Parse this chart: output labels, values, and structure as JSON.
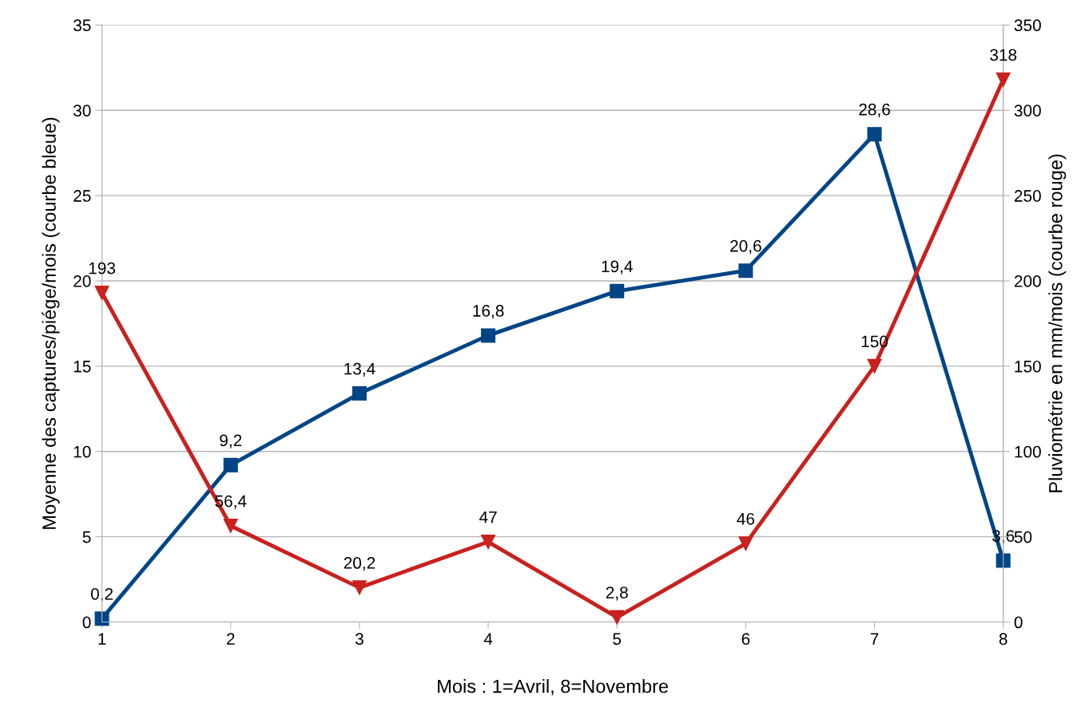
{
  "chart_data": {
    "type": "line",
    "xlabel": "Mois : 1=Avril, 8=Novembre",
    "ylabel": "Moyenne des captures/piége/mois (courbe bleue)",
    "y2label": "Pluviométrie en mm/mois (courbe rouge)",
    "x": [
      1,
      2,
      3,
      4,
      5,
      6,
      7,
      8
    ],
    "xlim": [
      1,
      8
    ],
    "xticks": [
      1,
      2,
      3,
      4,
      5,
      6,
      7,
      8
    ],
    "ylim": [
      0,
      35
    ],
    "yticks": [
      0,
      5,
      10,
      15,
      20,
      25,
      30,
      35
    ],
    "y2lim": [
      0,
      350
    ],
    "y2ticks": [
      0,
      50,
      100,
      150,
      200,
      250,
      300,
      350
    ],
    "grid": "y",
    "legend": false,
    "line_style": "solid",
    "series": [
      {
        "color": "#004586",
        "marker": "square",
        "values": [
          0.2,
          9.2,
          13.4,
          16.8,
          19.4,
          20.6,
          28.6,
          3.6
        ],
        "value_labels": [
          "0,2",
          "9,2",
          "13,4",
          "16,8",
          "19,4",
          "20,6",
          "28,6",
          "3,6"
        ]
      },
      {
        "color": "#c9211e",
        "marker": "triangle",
        "axis": "y2",
        "values": [
          193,
          56.4,
          20.2,
          47,
          2.8,
          46,
          150,
          318
        ],
        "value_labels": [
          "193",
          "56,4",
          "20,2",
          "47",
          "2,8",
          "46",
          "150",
          "318"
        ]
      }
    ]
  }
}
